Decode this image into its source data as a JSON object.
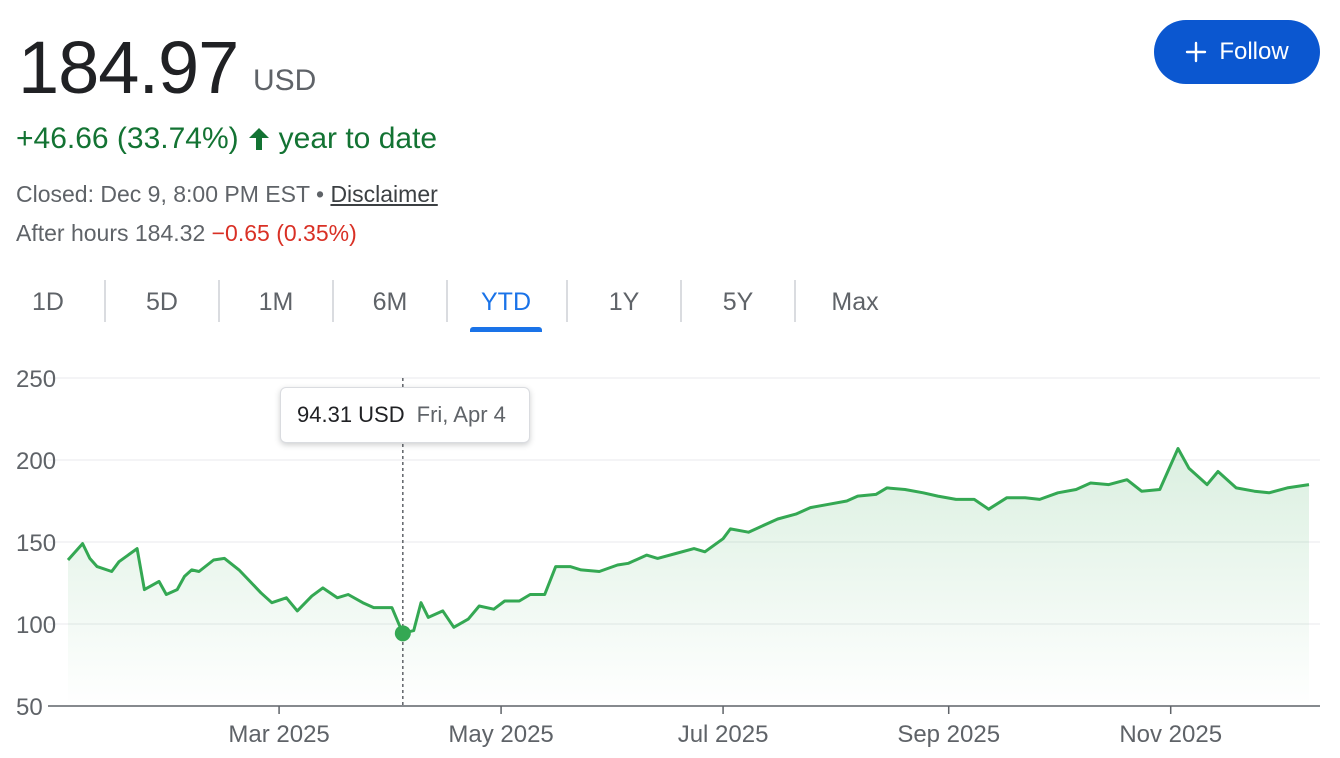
{
  "quote": {
    "price": "184.97",
    "currency": "USD",
    "change_text": "+46.66 (33.74%)",
    "period_text": "year to date",
    "closed_text": "Closed: Dec 9, 8:00 PM EST •",
    "disclaimer": "Disclaimer",
    "after_hours_label": "After hours 184.32",
    "after_hours_change": "−0.65 (0.35%)"
  },
  "follow_button": {
    "label": "Follow",
    "icon": "plus-icon"
  },
  "tabs": [
    {
      "label": "1D",
      "active": false
    },
    {
      "label": "5D",
      "active": false
    },
    {
      "label": "1M",
      "active": false
    },
    {
      "label": "6M",
      "active": false
    },
    {
      "label": "YTD",
      "active": true
    },
    {
      "label": "1Y",
      "active": false
    },
    {
      "label": "5Y",
      "active": false
    },
    {
      "label": "Max",
      "active": false
    }
  ],
  "tooltip": {
    "value": "94.31 USD",
    "date": "Fri, Apr 4"
  },
  "colors": {
    "up": "#137333",
    "down": "#d93025",
    "line": "#34a853",
    "accent": "#1a73e8",
    "button": "#0b57d0"
  },
  "chart_data": {
    "type": "area",
    "ylim": [
      50,
      250
    ],
    "yticks": [
      250,
      200,
      150,
      100,
      50
    ],
    "xticks": [
      {
        "label": "Mar 2025",
        "date": "2025-03-01"
      },
      {
        "label": "May 2025",
        "date": "2025-05-01"
      },
      {
        "label": "Jul 2025",
        "date": "2025-07-01"
      },
      {
        "label": "Sep 2025",
        "date": "2025-09-01"
      },
      {
        "label": "Nov 2025",
        "date": "2025-11-01"
      }
    ],
    "x_range": [
      "2025-01-02",
      "2025-12-09"
    ],
    "grid": true,
    "highlight": {
      "date": "2025-04-04",
      "value": 94.31
    },
    "series": [
      {
        "x": [
          "2025-01-02",
          "2025-01-06",
          "2025-01-08",
          "2025-01-10",
          "2025-01-14",
          "2025-01-16",
          "2025-01-21",
          "2025-01-23",
          "2025-01-27",
          "2025-01-29",
          "2025-02-01",
          "2025-02-03",
          "2025-02-05",
          "2025-02-07",
          "2025-02-11",
          "2025-02-14",
          "2025-02-18",
          "2025-02-21",
          "2025-02-24",
          "2025-02-27",
          "2025-03-03",
          "2025-03-06",
          "2025-03-10",
          "2025-03-13",
          "2025-03-17",
          "2025-03-20",
          "2025-03-24",
          "2025-03-27",
          "2025-04-01",
          "2025-04-04",
          "2025-04-07",
          "2025-04-09",
          "2025-04-11",
          "2025-04-15",
          "2025-04-18",
          "2025-04-22",
          "2025-04-25",
          "2025-04-29",
          "2025-05-02",
          "2025-05-06",
          "2025-05-09",
          "2025-05-13",
          "2025-05-16",
          "2025-05-20",
          "2025-05-23",
          "2025-05-28",
          "2025-06-02",
          "2025-06-05",
          "2025-06-10",
          "2025-06-13",
          "2025-06-18",
          "2025-06-23",
          "2025-06-26",
          "2025-07-01",
          "2025-07-03",
          "2025-07-08",
          "2025-07-11",
          "2025-07-16",
          "2025-07-21",
          "2025-07-25",
          "2025-07-30",
          "2025-08-04",
          "2025-08-07",
          "2025-08-12",
          "2025-08-15",
          "2025-08-20",
          "2025-08-25",
          "2025-08-29",
          "2025-09-03",
          "2025-09-08",
          "2025-09-12",
          "2025-09-17",
          "2025-09-22",
          "2025-09-26",
          "2025-10-01",
          "2025-10-06",
          "2025-10-10",
          "2025-10-15",
          "2025-10-20",
          "2025-10-24",
          "2025-10-29",
          "2025-11-03",
          "2025-11-06",
          "2025-11-11",
          "2025-11-14",
          "2025-11-19",
          "2025-11-24",
          "2025-11-28",
          "2025-12-03",
          "2025-12-09"
        ],
        "values": [
          139,
          149,
          140,
          135,
          132,
          138,
          146,
          121,
          126,
          118,
          121,
          129,
          133,
          132,
          139,
          140,
          133,
          126,
          119,
          113,
          116,
          108,
          117,
          122,
          116,
          118,
          113,
          110,
          110,
          94.31,
          96,
          113,
          104,
          108,
          98,
          103,
          111,
          109,
          114,
          114,
          118,
          118,
          135,
          135,
          133,
          132,
          136,
          137,
          142,
          140,
          143,
          146,
          144,
          152,
          158,
          156,
          159,
          164,
          167,
          171,
          173,
          175,
          178,
          179,
          183,
          182,
          180,
          178,
          176,
          176,
          170,
          177,
          177,
          176,
          180,
          182,
          186,
          185,
          188,
          181,
          182,
          207,
          195,
          185,
          193,
          183,
          181,
          180,
          183,
          185
        ]
      }
    ]
  }
}
